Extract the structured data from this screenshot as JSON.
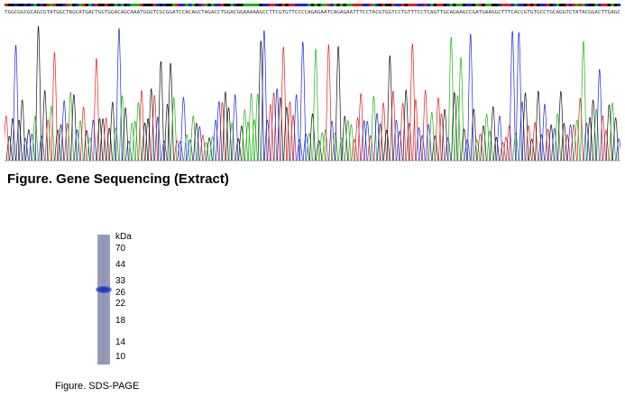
{
  "gene_figure": {
    "caption": "Figure. Gene Sequencing (Extract)",
    "sequence_header": "TGGCGGCGCAGCGTATGGCTAGCATGACTGGTGGACAGCAAATGGGTCGCGGATCCACAGCTAGACCTGGACGGAAAAAGCCTTCGTGTTCCCCAGAGAATCAGAGAATTTCCTACGTGGTCCTGTTTCCTCAGTTGCAGAAGCCGATGAAGGCTTTCACCGTGTGCCTGCAGGTCTATACGGACTTGAGC",
    "base_colors": {
      "A": "#1fb014",
      "C": "#1c26d6",
      "G": "#111111",
      "T": "#dc1f1f"
    }
  },
  "sds_figure": {
    "caption": "Figure. SDS-PAGE",
    "unit_label": "kDa",
    "markers_kda": [
      "70",
      "44",
      "33",
      "26",
      "22",
      "18",
      "14",
      "10"
    ],
    "band_estimated_kda": 28
  }
}
